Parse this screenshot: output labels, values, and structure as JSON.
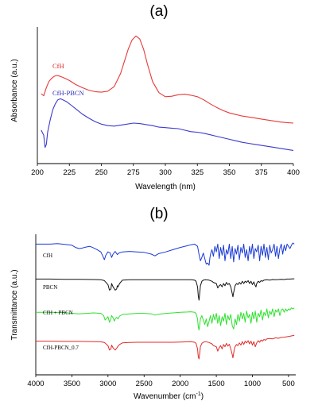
{
  "chart_data": [
    {
      "type": "line",
      "panel_label": "(a)",
      "title": "",
      "xlabel": "Wavelength (nm)",
      "ylabel": "Absorbance (a.u.)",
      "xlim": [
        200,
        400
      ],
      "x_ticks": [
        200,
        225,
        250,
        275,
        300,
        325,
        350,
        375,
        400
      ],
      "y_ticks": [],
      "grid": false,
      "series": [
        {
          "name": "CfH",
          "color": "#e8393a",
          "label_color": "#d62728",
          "x": [
            203,
            205,
            207,
            209,
            211,
            213,
            215,
            217,
            219,
            222,
            225,
            230,
            235,
            240,
            245,
            250,
            255,
            260,
            265,
            268,
            271,
            274,
            277,
            280,
            283,
            286,
            290,
            295,
            300,
            305,
            310,
            315,
            320,
            325,
            330,
            335,
            340,
            345,
            350,
            355,
            360,
            365,
            370,
            375,
            380,
            385,
            390,
            395,
            400
          ],
          "y": [
            0.38,
            0.36,
            0.44,
            0.5,
            0.53,
            0.55,
            0.56,
            0.555,
            0.545,
            0.53,
            0.51,
            0.47,
            0.44,
            0.415,
            0.4,
            0.395,
            0.405,
            0.45,
            0.58,
            0.7,
            0.82,
            0.91,
            0.95,
            0.92,
            0.82,
            0.67,
            0.5,
            0.39,
            0.35,
            0.355,
            0.37,
            0.375,
            0.365,
            0.35,
            0.32,
            0.28,
            0.245,
            0.215,
            0.19,
            0.175,
            0.16,
            0.15,
            0.14,
            0.13,
            0.12,
            0.11,
            0.1,
            0.095,
            0.09
          ]
        },
        {
          "name": "CfH-PBCN",
          "color": "#3a3acc",
          "label_color": "#2b2bb8",
          "x": [
            203,
            205,
            206,
            207,
            208,
            210,
            212,
            214,
            216,
            218,
            220,
            223,
            226,
            230,
            235,
            240,
            245,
            250,
            255,
            260,
            265,
            270,
            275,
            280,
            285,
            290,
            295,
            300,
            305,
            310,
            315,
            320,
            325,
            330,
            335,
            340,
            345,
            350,
            355,
            360,
            365,
            370,
            375,
            380,
            385,
            390,
            395,
            400
          ],
          "y": [
            0.02,
            -0.03,
            -0.15,
            -0.12,
            0.0,
            0.12,
            0.22,
            0.28,
            0.32,
            0.33,
            0.32,
            0.3,
            0.27,
            0.23,
            0.18,
            0.14,
            0.105,
            0.08,
            0.065,
            0.06,
            0.07,
            0.08,
            0.09,
            0.085,
            0.075,
            0.065,
            0.05,
            0.045,
            0.04,
            0.035,
            0.02,
            0.005,
            0.0,
            -0.01,
            -0.025,
            -0.04,
            -0.055,
            -0.07,
            -0.085,
            -0.1,
            -0.11,
            -0.12,
            -0.13,
            -0.14,
            -0.15,
            -0.16,
            -0.17,
            -0.18
          ]
        }
      ]
    },
    {
      "type": "line",
      "panel_label": "(b)",
      "title": "",
      "xlabel": "Wavenumber (cm",
      "xlabel_sup": "-1",
      "xlabel_close": ")",
      "ylabel": "Transmittance (a.u.)",
      "xlim": [
        4000,
        400
      ],
      "x_reversed": true,
      "x_ticks": [
        4000,
        3500,
        3000,
        2500,
        2000,
        1500,
        1000,
        500
      ],
      "y_ticks": [],
      "grid": false,
      "series": [
        {
          "name": "CfH",
          "color": "#1a3ad6",
          "offset": 3,
          "x": [
            4000,
            3800,
            3700,
            3600,
            3500,
            3450,
            3400,
            3350,
            3300,
            3250,
            3200,
            3150,
            3100,
            3070,
            3050,
            3030,
            3000,
            2970,
            2950,
            2930,
            2900,
            2870,
            2850,
            2800,
            2700,
            2600,
            2500,
            2400,
            2350,
            2300,
            2200,
            2100,
            2000,
            1900,
            1850,
            1800,
            1780,
            1760,
            1740,
            1720,
            1700,
            1680,
            1660,
            1640,
            1620,
            1600,
            1590,
            1580,
            1560,
            1540,
            1520,
            1500,
            1480,
            1460,
            1440,
            1420,
            1400,
            1380,
            1360,
            1340,
            1320,
            1300,
            1280,
            1260,
            1240,
            1220,
            1200,
            1180,
            1160,
            1140,
            1120,
            1100,
            1080,
            1060,
            1040,
            1020,
            1000,
            980,
            960,
            940,
            920,
            900,
            880,
            860,
            840,
            820,
            800,
            780,
            760,
            740,
            720,
            700,
            680,
            660,
            640,
            620,
            600,
            580,
            560,
            540,
            520,
            500,
            480,
            460,
            440,
            420
          ],
          "y": [
            0.95,
            0.95,
            0.97,
            0.94,
            0.9,
            0.8,
            0.75,
            0.78,
            0.82,
            0.85,
            0.78,
            0.7,
            0.6,
            0.4,
            0.25,
            0.45,
            0.6,
            0.55,
            0.35,
            0.5,
            0.62,
            0.48,
            0.55,
            0.6,
            0.62,
            0.6,
            0.58,
            0.5,
            0.42,
            0.52,
            0.6,
            0.7,
            0.8,
            0.88,
            0.92,
            0.95,
            0.9,
            0.85,
            0.5,
            0.2,
            0.35,
            0.55,
            0.3,
            0.05,
            0.1,
            0.0,
            0.3,
            0.5,
            0.7,
            0.4,
            0.85,
            0.6,
            0.95,
            0.3,
            0.8,
            0.45,
            0.9,
            0.2,
            0.7,
            0.5,
            0.95,
            0.3,
            0.85,
            0.15,
            0.75,
            0.5,
            0.9,
            0.25,
            0.8,
            0.55,
            0.95,
            0.35,
            0.7,
            0.2,
            0.85,
            0.5,
            0.95,
            0.3,
            0.75,
            0.6,
            0.9,
            0.2,
            0.85,
            0.45,
            0.95,
            0.35,
            0.8,
            0.25,
            0.9,
            0.55,
            0.7,
            0.95,
            0.4,
            0.85,
            0.3,
            0.75,
            0.95,
            0.5,
            0.9,
            0.65,
            0.95,
            0.85,
            0.75,
            0.9,
            1.0,
            0.95
          ]
        },
        {
          "name": "PBCN",
          "color": "#111111",
          "offset": 2,
          "x": [
            4000,
            3800,
            3600,
            3400,
            3200,
            3100,
            3050,
            3000,
            2980,
            2960,
            2950,
            2930,
            2900,
            2880,
            2870,
            2860,
            2840,
            2800,
            2700,
            2600,
            2500,
            2400,
            2300,
            2200,
            2100,
            2000,
            1950,
            1900,
            1850,
            1800,
            1780,
            1760,
            1750,
            1740,
            1730,
            1720,
            1700,
            1680,
            1650,
            1600,
            1560,
            1540,
            1500,
            1480,
            1460,
            1440,
            1420,
            1400,
            1380,
            1360,
            1340,
            1320,
            1300,
            1280,
            1270,
            1260,
            1250,
            1240,
            1220,
            1200,
            1180,
            1160,
            1140,
            1120,
            1100,
            1080,
            1060,
            1040,
            1020,
            1000,
            980,
            960,
            950,
            940,
            920,
            900,
            880,
            860,
            840,
            800,
            760,
            720,
            680,
            640,
            600,
            560,
            520,
            480,
            440,
            420
          ],
          "y": [
            0.95,
            0.95,
            0.94,
            0.94,
            0.93,
            0.92,
            0.88,
            0.7,
            0.45,
            0.5,
            0.75,
            0.6,
            0.45,
            0.5,
            0.65,
            0.6,
            0.75,
            0.9,
            0.92,
            0.92,
            0.92,
            0.92,
            0.92,
            0.92,
            0.92,
            0.92,
            0.92,
            0.92,
            0.92,
            0.9,
            0.85,
            0.6,
            0.2,
            0.0,
            0.3,
            0.65,
            0.85,
            0.9,
            0.92,
            0.9,
            0.85,
            0.8,
            0.75,
            0.55,
            0.65,
            0.7,
            0.6,
            0.75,
            0.65,
            0.8,
            0.7,
            0.75,
            0.6,
            0.3,
            0.15,
            0.35,
            0.5,
            0.65,
            0.75,
            0.7,
            0.8,
            0.72,
            0.85,
            0.75,
            0.85,
            0.8,
            0.88,
            0.75,
            0.85,
            0.7,
            0.82,
            0.65,
            0.6,
            0.75,
            0.85,
            0.8,
            0.88,
            0.85,
            0.9,
            0.92,
            0.9,
            0.93,
            0.92,
            0.93,
            0.94,
            0.93,
            0.95,
            0.95,
            0.96,
            0.96
          ]
        },
        {
          "name": "CfH + PBCN",
          "color": "#2ee02e",
          "offset": 1,
          "x": [
            4000,
            3800,
            3600,
            3500,
            3400,
            3300,
            3200,
            3100,
            3060,
            3040,
            3000,
            2980,
            2960,
            2950,
            2930,
            2910,
            2900,
            2880,
            2860,
            2840,
            2800,
            2700,
            2600,
            2500,
            2400,
            2350,
            2300,
            2200,
            2100,
            2000,
            1900,
            1850,
            1800,
            1780,
            1760,
            1750,
            1740,
            1730,
            1720,
            1700,
            1680,
            1660,
            1640,
            1620,
            1600,
            1580,
            1560,
            1540,
            1520,
            1500,
            1480,
            1460,
            1440,
            1420,
            1400,
            1380,
            1360,
            1340,
            1320,
            1300,
            1280,
            1260,
            1240,
            1220,
            1200,
            1180,
            1160,
            1140,
            1120,
            1100,
            1080,
            1060,
            1040,
            1020,
            1000,
            980,
            960,
            940,
            920,
            900,
            880,
            860,
            840,
            820,
            800,
            780,
            760,
            740,
            720,
            700,
            680,
            660,
            640,
            620,
            600,
            580,
            560,
            540,
            520,
            500,
            480,
            460,
            440,
            420
          ],
          "y": [
            0.85,
            0.85,
            0.84,
            0.8,
            0.78,
            0.8,
            0.82,
            0.8,
            0.7,
            0.5,
            0.65,
            0.4,
            0.55,
            0.7,
            0.6,
            0.45,
            0.55,
            0.62,
            0.55,
            0.68,
            0.75,
            0.78,
            0.8,
            0.8,
            0.78,
            0.72,
            0.76,
            0.8,
            0.82,
            0.85,
            0.86,
            0.87,
            0.85,
            0.8,
            0.55,
            0.2,
            0.05,
            0.3,
            0.55,
            0.7,
            0.5,
            0.3,
            0.55,
            0.2,
            0.45,
            0.7,
            0.35,
            0.75,
            0.5,
            0.8,
            0.35,
            0.7,
            0.25,
            0.65,
            0.45,
            0.8,
            0.3,
            0.7,
            0.5,
            0.75,
            0.25,
            0.1,
            0.55,
            0.3,
            0.75,
            0.45,
            0.85,
            0.55,
            0.8,
            0.4,
            0.9,
            0.6,
            0.75,
            0.35,
            0.85,
            0.55,
            0.9,
            0.4,
            0.8,
            0.65,
            0.95,
            0.5,
            0.85,
            0.7,
            1.0,
            0.6,
            0.9,
            0.75,
            1.0,
            0.65,
            0.95,
            0.85,
            1.0,
            0.7,
            0.95,
            1.0,
            0.85,
            1.0,
            0.9,
            1.0,
            0.95,
            1.05,
            1.0,
            1.05
          ]
        },
        {
          "name": "CfH-PBCN_0.7",
          "color": "#e22a2a",
          "offset": 0,
          "x": [
            4000,
            3800,
            3600,
            3400,
            3200,
            3100,
            3050,
            3000,
            2980,
            2960,
            2950,
            2930,
            2900,
            2880,
            2860,
            2840,
            2800,
            2700,
            2600,
            2500,
            2400,
            2300,
            2200,
            2100,
            2000,
            1900,
            1850,
            1800,
            1780,
            1760,
            1750,
            1740,
            1730,
            1720,
            1700,
            1680,
            1650,
            1600,
            1560,
            1540,
            1500,
            1480,
            1460,
            1440,
            1420,
            1400,
            1380,
            1360,
            1340,
            1320,
            1300,
            1280,
            1270,
            1260,
            1250,
            1240,
            1220,
            1200,
            1180,
            1160,
            1140,
            1120,
            1100,
            1080,
            1060,
            1040,
            1020,
            1000,
            980,
            960,
            940,
            920,
            900,
            880,
            860,
            840,
            820,
            800,
            760,
            720,
            680,
            640,
            600,
            560,
            520,
            480,
            440,
            420
          ],
          "y": [
            0.8,
            0.8,
            0.79,
            0.79,
            0.78,
            0.77,
            0.74,
            0.6,
            0.4,
            0.45,
            0.62,
            0.5,
            0.4,
            0.48,
            0.58,
            0.65,
            0.72,
            0.74,
            0.75,
            0.75,
            0.75,
            0.75,
            0.75,
            0.75,
            0.76,
            0.77,
            0.78,
            0.75,
            0.7,
            0.45,
            0.1,
            0.0,
            0.25,
            0.55,
            0.7,
            0.75,
            0.78,
            0.74,
            0.68,
            0.6,
            0.55,
            0.35,
            0.5,
            0.6,
            0.45,
            0.65,
            0.55,
            0.7,
            0.58,
            0.66,
            0.45,
            0.2,
            0.05,
            0.25,
            0.45,
            0.55,
            0.65,
            0.6,
            0.72,
            0.62,
            0.78,
            0.65,
            0.8,
            0.72,
            0.82,
            0.68,
            0.8,
            0.62,
            0.78,
            0.55,
            0.72,
            0.82,
            0.75,
            0.85,
            0.8,
            0.88,
            0.84,
            0.9,
            0.92,
            0.9,
            0.95,
            0.93,
            0.97,
            0.98,
            1.0,
            1.02,
            1.05,
            1.06
          ]
        }
      ]
    }
  ]
}
